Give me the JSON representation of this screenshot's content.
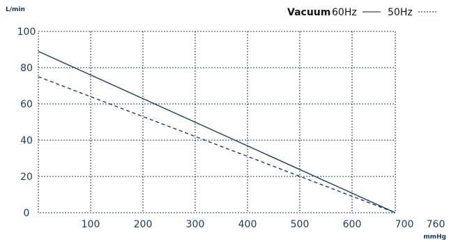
{
  "chart_data": {
    "type": "line",
    "xlabel": "mmHg",
    "ylabel": "L/min",
    "xlim": [
      0,
      760
    ],
    "ylim": [
      0,
      100
    ],
    "xticks": [
      100,
      200,
      300,
      400,
      500,
      600,
      700,
      760
    ],
    "yticks": [
      0,
      20,
      40,
      60,
      80,
      100
    ],
    "grid": true,
    "legend": {
      "placement": "top-right",
      "title": "Vacuum"
    },
    "colors": {
      "line": "#1a3a5c",
      "grid": "#1a3a5c",
      "text": "#1a3a5c"
    },
    "series": [
      {
        "name": "60Hz",
        "style": "solid",
        "x": [
          0,
          680
        ],
        "y": [
          89,
          0
        ]
      },
      {
        "name": "50Hz",
        "style": "dashed",
        "x": [
          0,
          680
        ],
        "y": [
          75,
          0
        ]
      }
    ]
  }
}
